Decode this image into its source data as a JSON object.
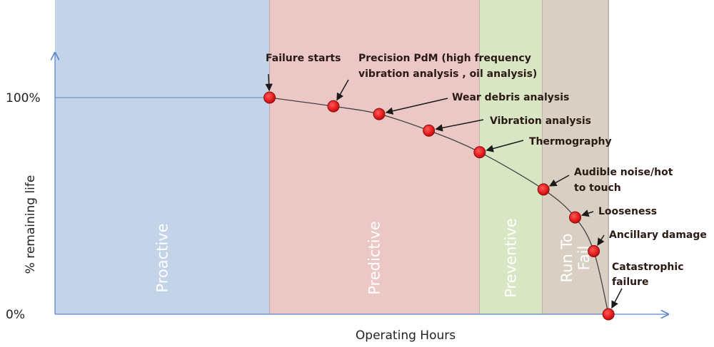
{
  "chart_data": {
    "type": "scatter",
    "title": "",
    "xlabel": "Operating Hours",
    "ylabel": "% remaining life",
    "xlim": [
      0,
      100
    ],
    "ylim": [
      0,
      100
    ],
    "yticks": [
      {
        "value": 100,
        "label": "100%"
      },
      {
        "value": 0,
        "label": "0%"
      }
    ],
    "grid": false,
    "zones": [
      {
        "label": "Proactive",
        "start": 0,
        "end": 38.0,
        "color": "#c3d3e8"
      },
      {
        "label": "Predictive",
        "start": 38.0,
        "end": 75.2,
        "color": "#ebc7c6"
      },
      {
        "label": "Preventive",
        "start": 75.2,
        "end": 86.3,
        "color": "#d8e6c3"
      },
      {
        "label": "Run To Fail",
        "start": 86.3,
        "end": 98.0,
        "color": "#d9cfc2"
      }
    ],
    "curve_color": "#444444",
    "point_color": "#e01818",
    "points": [
      {
        "label": "Failure starts",
        "x": 38.0,
        "y": 100
      },
      {
        "label": "Precision PdM (high frequency vibration analysis , oil analysis)",
        "x": 49.3,
        "y": 96
      },
      {
        "label": "Wear debris analysis",
        "x": 57.4,
        "y": 92.4
      },
      {
        "label": "Vibration analysis",
        "x": 66.2,
        "y": 84.8
      },
      {
        "label": "Thermography",
        "x": 75.2,
        "y": 74.8
      },
      {
        "label": "Audible noise/hot to touch",
        "x": 86.5,
        "y": 57.6
      },
      {
        "label": "Looseness",
        "x": 92.1,
        "y": 44.7
      },
      {
        "label": "Ancillary damage",
        "x": 95.4,
        "y": 29.1
      },
      {
        "label": "Catastrophic failure",
        "x": 98.0,
        "y": 0
      }
    ]
  }
}
